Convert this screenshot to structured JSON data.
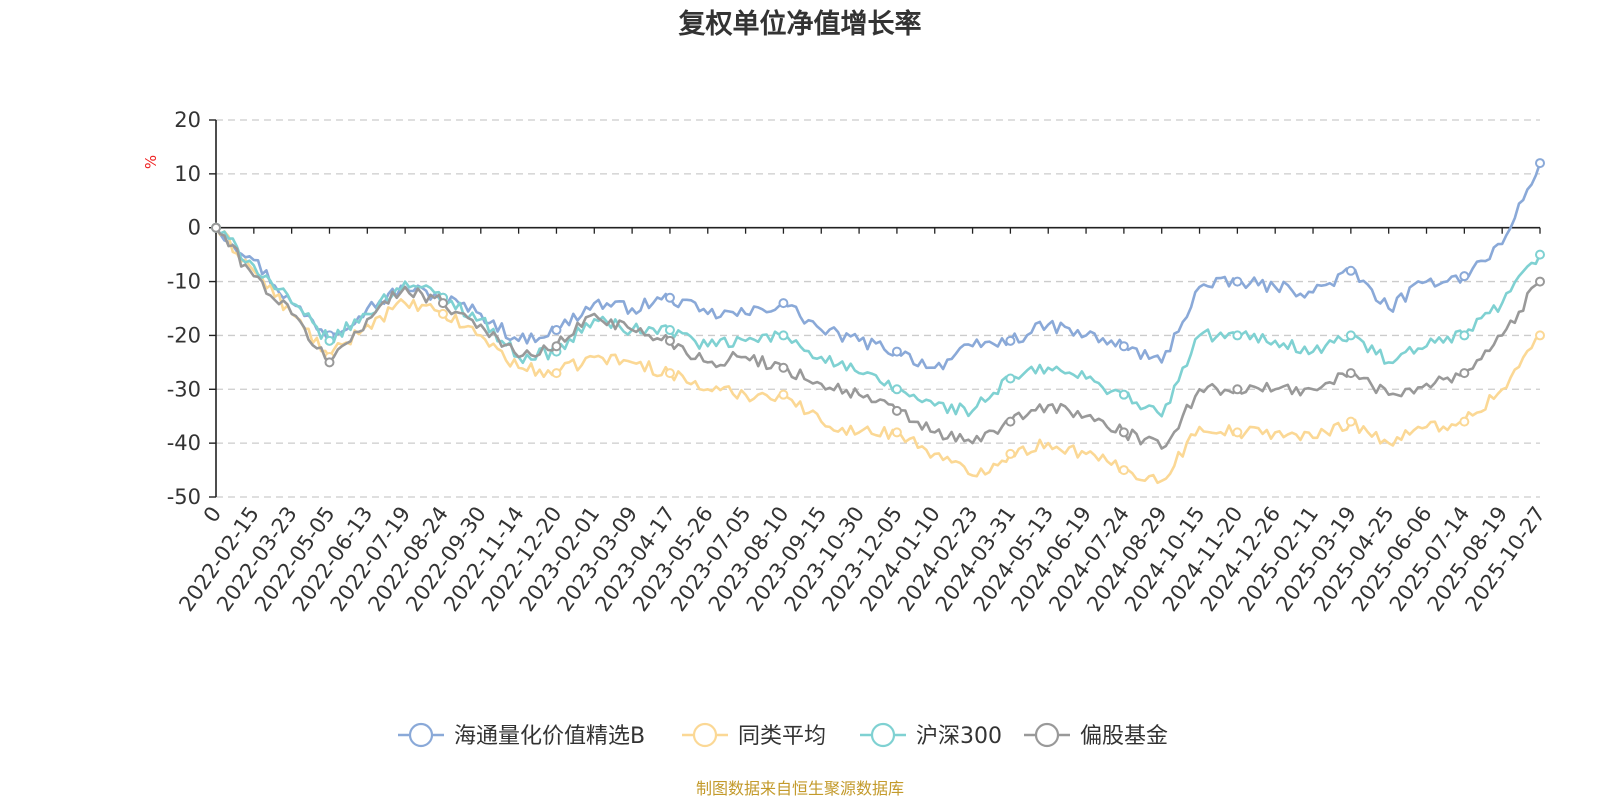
{
  "chart_data": {
    "type": "line",
    "title": "复权单位净值增长率",
    "xlabel": "",
    "ylabel": "%",
    "ylim": [
      -50,
      20
    ],
    "yticks": [
      20,
      10,
      0,
      -10,
      -20,
      -30,
      -40,
      -50
    ],
    "grid": true,
    "legend_position": "bottom-center",
    "x": [
      "0",
      "2022-02-15",
      "2022-03-23",
      "2022-05-05",
      "2022-06-13",
      "2022-07-19",
      "2022-08-24",
      "2022-09-30",
      "2022-11-14",
      "2022-12-20",
      "2023-02-01",
      "2023-03-09",
      "2023-04-17",
      "2023-05-26",
      "2023-07-05",
      "2023-08-10",
      "2023-09-15",
      "2023-10-30",
      "2023-12-05",
      "2024-01-10",
      "2024-02-23",
      "2024-03-31",
      "2024-05-13",
      "2024-06-19",
      "2024-07-24",
      "2024-08-29",
      "2024-10-15",
      "2024-11-20",
      "2024-12-26",
      "2025-02-11",
      "2025-03-19",
      "2025-04-25",
      "2025-06-06",
      "2025-07-14",
      "2025-08-19",
      "2025-10-27"
    ],
    "series": [
      {
        "name": "海通量化价值精选B",
        "color": "#8aa9d8",
        "values": [
          0,
          -6,
          -14,
          -20,
          -15,
          -11,
          -13,
          -16,
          -21,
          -19,
          -14,
          -15,
          -13,
          -16,
          -16,
          -14,
          -19,
          -21,
          -23,
          -26,
          -22,
          -21,
          -18,
          -20,
          -22,
          -25,
          -11,
          -10,
          -11,
          -12,
          -8,
          -15,
          -10,
          -9,
          -3,
          12
        ]
      },
      {
        "name": "同类平均",
        "color": "#fbd895",
        "values": [
          0,
          -8,
          -16,
          -24,
          -18,
          -14,
          -16,
          -20,
          -26,
          -27,
          -24,
          -25,
          -27,
          -30,
          -31,
          -31,
          -36,
          -38,
          -38,
          -42,
          -46,
          -42,
          -40,
          -42,
          -45,
          -47,
          -37,
          -38,
          -38,
          -39,
          -36,
          -40,
          -37,
          -36,
          -30,
          -20
        ]
      },
      {
        "name": "沪深300",
        "color": "#7fd1d2",
        "values": [
          0,
          -7,
          -14,
          -21,
          -16,
          -10,
          -13,
          -17,
          -24,
          -23,
          -17,
          -19,
          -19,
          -22,
          -21,
          -20,
          -24,
          -27,
          -30,
          -33,
          -34,
          -28,
          -26,
          -28,
          -31,
          -35,
          -20,
          -20,
          -21,
          -23,
          -20,
          -25,
          -22,
          -20,
          -14,
          -5
        ]
      },
      {
        "name": "偏股基金",
        "color": "#999999",
        "values": [
          0,
          -9,
          -16,
          -25,
          -17,
          -11,
          -14,
          -18,
          -24,
          -22,
          -16,
          -19,
          -21,
          -25,
          -24,
          -26,
          -29,
          -31,
          -34,
          -38,
          -40,
          -36,
          -33,
          -35,
          -38,
          -41,
          -30,
          -30,
          -30,
          -30,
          -27,
          -31,
          -29,
          -27,
          -20,
          -10
        ]
      }
    ]
  },
  "source_text": "制图数据来自恒生聚源数据库"
}
